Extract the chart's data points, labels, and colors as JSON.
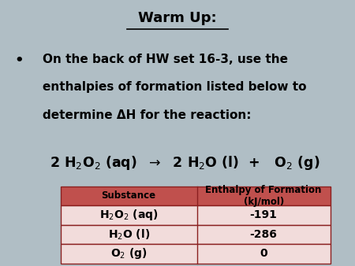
{
  "background_color": "#b0bec5",
  "title": "Warm Up:",
  "bullet_text_line1": "On the back of HW set 16-3, use the",
  "bullet_text_line2": "enthalpies of formation listed below to",
  "bullet_text_line3": "determine ΔH for the reaction:",
  "table_header_bg": "#c0504d",
  "table_row_bg": "#f2dcdb",
  "table_border_color": "#8b2020",
  "col1_header": "Substance",
  "col2_header": "Enthalpy of Formation\n(kJ/mol)",
  "substances": [
    "H$_2$O$_2$ (aq)",
    "H$_2$O (l)",
    "O$_2$ (g)"
  ],
  "values": [
    "-191",
    "-286",
    "0"
  ]
}
